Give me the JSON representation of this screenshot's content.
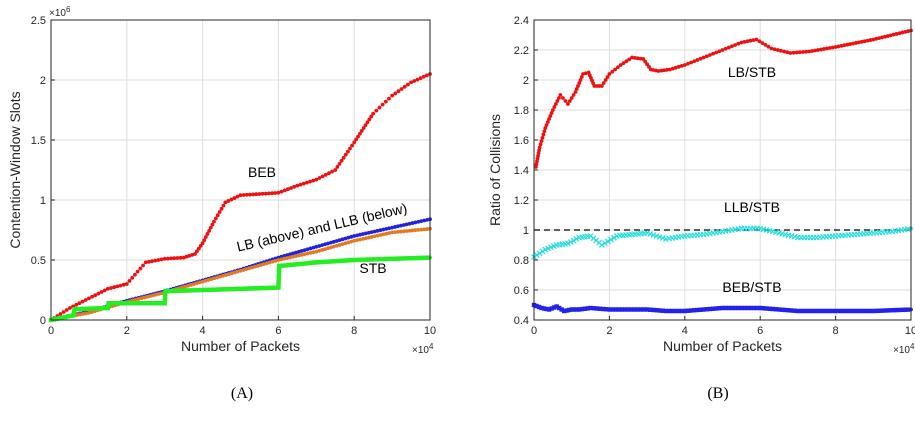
{
  "chart_data": [
    {
      "type": "scatter",
      "panel": "A",
      "caption": "(A)",
      "xlabel": "Number of Packets",
      "ylabel": "Contention-Window Slots",
      "x_multiplier": "×10^4",
      "y_multiplier": "×10^6",
      "xlim": [
        0,
        10
      ],
      "ylim": [
        0,
        2.5
      ],
      "xticks": [
        "0",
        "2",
        "4",
        "6",
        "8",
        "10"
      ],
      "yticks": [
        "0",
        "0.5",
        "1",
        "1.5",
        "2",
        "2.5"
      ],
      "grid": true,
      "annotations": [
        {
          "text": "BEB"
        },
        {
          "text": "LB (above) and LLB (below)"
        },
        {
          "text": "STB"
        }
      ],
      "series": [
        {
          "name": "BEB",
          "color": "#ee1111",
          "x": [
            0,
            0.5,
            1,
            1.5,
            2,
            2.5,
            3,
            3.5,
            3.8,
            4,
            4.3,
            4.6,
            5,
            5.5,
            6,
            6.5,
            7,
            7.5,
            8,
            8.5,
            9,
            9.5,
            10
          ],
          "y": [
            0,
            0.1,
            0.18,
            0.26,
            0.3,
            0.48,
            0.51,
            0.52,
            0.55,
            0.64,
            0.82,
            0.98,
            1.04,
            1.05,
            1.06,
            1.12,
            1.17,
            1.25,
            1.48,
            1.72,
            1.87,
            1.98,
            2.05
          ]
        },
        {
          "name": "LB",
          "color": "#2222dd",
          "x": [
            0,
            1,
            2,
            3,
            4,
            5,
            6,
            7,
            8,
            9,
            10
          ],
          "y": [
            0,
            0.07,
            0.16,
            0.24,
            0.33,
            0.42,
            0.52,
            0.61,
            0.7,
            0.77,
            0.84
          ]
        },
        {
          "name": "LLB",
          "color": "#e07b22",
          "x": [
            0,
            1,
            2,
            3,
            4,
            5,
            6,
            7,
            8,
            9,
            10
          ],
          "y": [
            0,
            0.06,
            0.15,
            0.23,
            0.32,
            0.41,
            0.5,
            0.57,
            0.66,
            0.73,
            0.76
          ]
        },
        {
          "name": "STB",
          "color": "#22ee22",
          "x": [
            0,
            0.6,
            0.62,
            1.5,
            1.52,
            3.0,
            3.02,
            6.0,
            6.02,
            7,
            8,
            9,
            10
          ],
          "y": [
            0,
            0.04,
            0.09,
            0.1,
            0.14,
            0.14,
            0.24,
            0.27,
            0.45,
            0.48,
            0.5,
            0.51,
            0.52
          ]
        }
      ]
    },
    {
      "type": "scatter",
      "panel": "B",
      "caption": "(B)",
      "xlabel": "Number of Packets",
      "ylabel": "Ratio of Collisions",
      "x_multiplier": "×10^4",
      "xlim": [
        0,
        10
      ],
      "ylim": [
        0.4,
        2.4
      ],
      "xticks": [
        "0",
        "2",
        "4",
        "6",
        "8",
        "10"
      ],
      "yticks": [
        "0.4",
        "0.6",
        "0.8",
        "1",
        "1.2",
        "1.4",
        "1.6",
        "1.8",
        "2",
        "2.2",
        "2.4"
      ],
      "grid": true,
      "reference_line": {
        "y": 1,
        "style": "dashed",
        "color": "#000000"
      },
      "annotations": [
        {
          "text": "LB/STB"
        },
        {
          "text": "LLB/STB"
        },
        {
          "text": "BEB/STB"
        }
      ],
      "series": [
        {
          "name": "LB/STB",
          "color": "#ee1111",
          "x": [
            0.05,
            0.15,
            0.3,
            0.5,
            0.7,
            0.9,
            1.1,
            1.3,
            1.45,
            1.6,
            1.8,
            2.0,
            2.3,
            2.6,
            2.9,
            3.1,
            3.3,
            3.6,
            4.0,
            4.5,
            5.0,
            5.5,
            5.9,
            6.3,
            6.8,
            7.3,
            8.0,
            9.0,
            10.0
          ],
          "y": [
            1.42,
            1.55,
            1.68,
            1.8,
            1.9,
            1.84,
            1.92,
            2.04,
            2.05,
            1.96,
            1.96,
            2.04,
            2.1,
            2.15,
            2.14,
            2.07,
            2.06,
            2.07,
            2.1,
            2.15,
            2.2,
            2.25,
            2.27,
            2.21,
            2.18,
            2.19,
            2.22,
            2.27,
            2.33
          ]
        },
        {
          "name": "LLB/STB",
          "color": "#22dddd",
          "x": [
            0,
            0.3,
            0.6,
            0.9,
            1.2,
            1.5,
            1.8,
            2.2,
            2.6,
            3.0,
            3.5,
            4.0,
            4.5,
            5.0,
            5.5,
            6.0,
            6.5,
            7.0,
            7.5,
            8.0,
            8.5,
            9.0,
            9.5,
            10.0
          ],
          "y": [
            0.82,
            0.87,
            0.9,
            0.91,
            0.95,
            0.96,
            0.9,
            0.96,
            0.97,
            0.98,
            0.94,
            0.96,
            0.97,
            0.99,
            1.01,
            1.01,
            0.98,
            0.95,
            0.95,
            0.96,
            0.97,
            0.98,
            0.99,
            1.01
          ]
        },
        {
          "name": "BEB/STB",
          "color": "#2222ee",
          "x": [
            0,
            0.2,
            0.4,
            0.6,
            0.8,
            1.0,
            1.2,
            1.5,
            2.0,
            2.5,
            3.0,
            3.5,
            4.0,
            4.5,
            5.0,
            5.5,
            6.0,
            6.5,
            7.0,
            8.0,
            9.0,
            10.0
          ],
          "y": [
            0.5,
            0.48,
            0.47,
            0.49,
            0.46,
            0.47,
            0.47,
            0.48,
            0.47,
            0.47,
            0.47,
            0.46,
            0.46,
            0.47,
            0.48,
            0.48,
            0.48,
            0.47,
            0.46,
            0.46,
            0.46,
            0.47
          ]
        }
      ]
    }
  ]
}
